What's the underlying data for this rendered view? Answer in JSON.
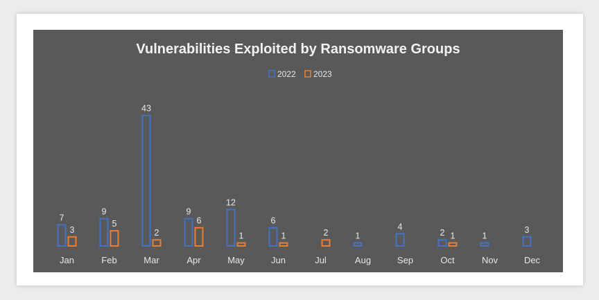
{
  "chart_data": {
    "type": "bar",
    "title": "Vulnerabilities Exploited by Ransomware Groups",
    "categories": [
      "Jan",
      "Feb",
      "Mar",
      "Apr",
      "May",
      "Jun",
      "Jul",
      "Aug",
      "Sep",
      "Oct",
      "Nov",
      "Dec"
    ],
    "series": [
      {
        "name": "2022",
        "values": [
          7,
          9,
          43,
          9,
          12,
          6,
          null,
          1,
          4,
          2,
          1,
          3
        ],
        "color": "#4472c4"
      },
      {
        "name": "2023",
        "values": [
          3,
          5,
          2,
          6,
          1,
          1,
          2,
          null,
          null,
          1,
          null,
          null
        ],
        "color": "#ed7d31"
      }
    ],
    "legend": "top-center",
    "grid": false,
    "background": "#595959"
  }
}
